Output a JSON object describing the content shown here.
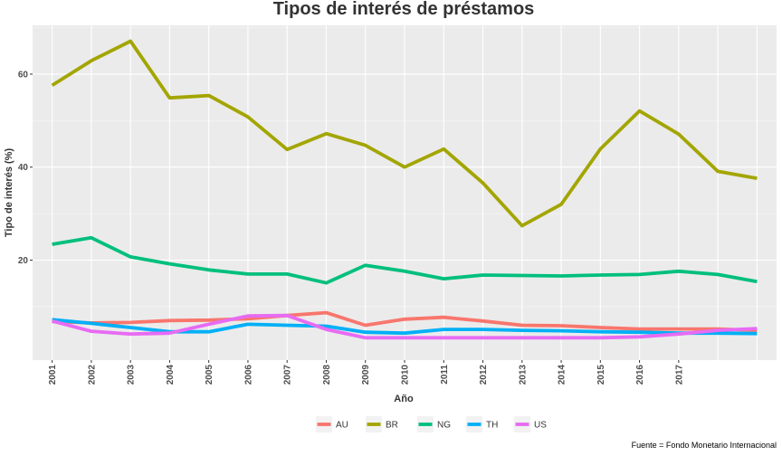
{
  "chart_data": {
    "type": "line",
    "title": "Tipos de interés de préstamos",
    "xlabel": "Año",
    "ylabel": "Tipo de interés (%)",
    "caption": "Fuente = Fondo Monetario Internacional",
    "x_tick_labels": [
      "2001",
      "2002",
      "2003",
      "2004",
      "2005",
      "2006",
      "2007",
      "2008",
      "2009",
      "2010",
      "2011",
      "2012",
      "2013",
      "2014",
      "2015",
      "2016",
      "2017"
    ],
    "x": [
      2001,
      2002,
      2003,
      2004,
      2005,
      2006,
      2007,
      2008,
      2009,
      2010,
      2011,
      2012,
      2013,
      2014,
      2015,
      2016,
      2017,
      2018,
      2019
    ],
    "xlim": [
      2000.5,
      2019.5
    ],
    "ylim": [
      -1.5,
      70.5
    ],
    "y_ticks": [
      20,
      40,
      60
    ],
    "grid": true,
    "legend_position": "bottom",
    "series": [
      {
        "name": "AU",
        "color": "#F8766D",
        "values": [
          6.8,
          6.5,
          6.6,
          7.0,
          7.1,
          7.4,
          8.1,
          8.7,
          6.0,
          7.3,
          7.7,
          6.9,
          6.0,
          5.9,
          5.5,
          5.2,
          5.2,
          5.2,
          4.9
        ]
      },
      {
        "name": "BR",
        "color": "#A3A500",
        "values": [
          57.6,
          62.9,
          67.1,
          54.9,
          55.4,
          50.8,
          43.8,
          47.2,
          44.7,
          40.0,
          43.9,
          36.6,
          27.4,
          32.0,
          43.9,
          52.1,
          47.1,
          39.1,
          37.6
        ]
      },
      {
        "name": "NG",
        "color": "#00BF7D",
        "values": [
          23.4,
          24.8,
          20.7,
          19.2,
          17.9,
          17.0,
          17.0,
          15.1,
          18.9,
          17.6,
          16.0,
          16.8,
          16.7,
          16.6,
          16.8,
          16.9,
          17.6,
          16.9,
          15.4
        ]
      },
      {
        "name": "TH",
        "color": "#00B0F6",
        "values": [
          7.2,
          6.4,
          5.5,
          4.6,
          4.6,
          6.2,
          6.0,
          5.8,
          4.5,
          4.3,
          5.1,
          5.1,
          4.9,
          4.8,
          4.6,
          4.5,
          4.3,
          4.3,
          4.2
        ]
      },
      {
        "name": "US",
        "color": "#E76BF3",
        "values": [
          6.9,
          4.7,
          4.1,
          4.3,
          6.2,
          8.0,
          8.1,
          5.1,
          3.3,
          3.3,
          3.3,
          3.3,
          3.3,
          3.3,
          3.3,
          3.5,
          4.1,
          4.9,
          5.3
        ]
      }
    ]
  }
}
